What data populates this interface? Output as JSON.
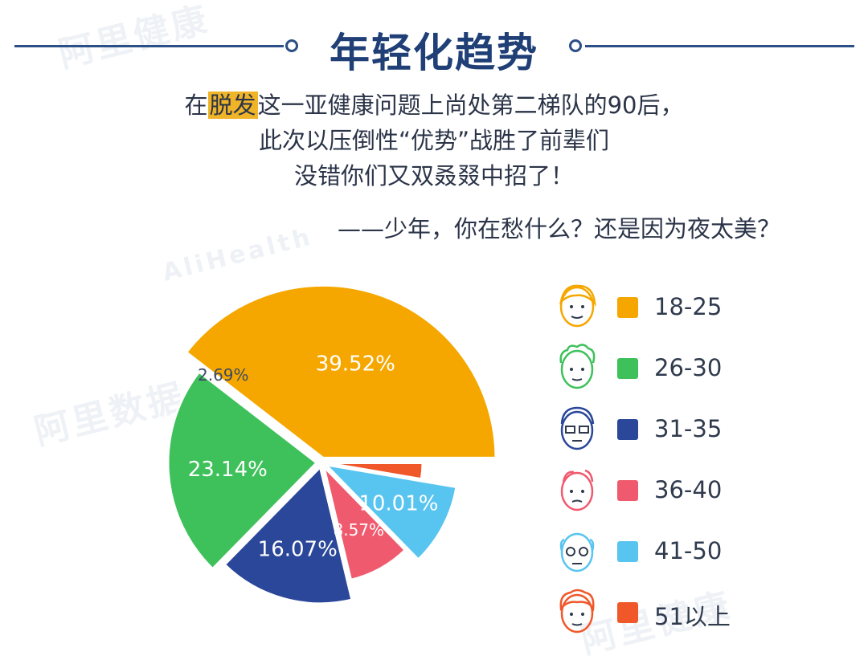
{
  "header": {
    "title": "年轻化趋势",
    "line1_highlight": "脱发",
    "line1_prefix": "在",
    "line1_suffix": "这一亚健康问题上尚处第二梯队的90后，",
    "line2": "此次以压倒性“优势”战胜了前辈们",
    "line3": "没错你们又双叒叕中招了！",
    "quote": "——少年，你在愁什么？还是因为夜太美？"
  },
  "watermark": [
    "阿里健康",
    "AliHealth",
    "阿里数据",
    "阿里健康"
  ],
  "chart_data": {
    "type": "pie",
    "title": "",
    "slices": [
      {
        "label": "18-25",
        "value": 39.52,
        "display": "39.52%",
        "color": "#f5a700",
        "face": "young-face-icon"
      },
      {
        "label": "26-30",
        "value": 23.14,
        "display": "23.14%",
        "color": "#3ec15a",
        "face": "curly-hair-face-icon"
      },
      {
        "label": "31-35",
        "value": 16.07,
        "display": "16.07%",
        "color": "#2b479a",
        "face": "glasses-face-icon"
      },
      {
        "label": "36-40",
        "value": 8.57,
        "display": "8.57%",
        "color": "#f05a6e",
        "face": "balding-face-icon"
      },
      {
        "label": "41-50",
        "value": 10.01,
        "display": "10.01%",
        "color": "#58c4f0",
        "face": "bald-glasses-face-icon"
      },
      {
        "label": "51以上",
        "value": 2.69,
        "display": "2.69%",
        "color": "#f0582a",
        "face": "elder-face-icon"
      }
    ],
    "legend_position": "right"
  }
}
